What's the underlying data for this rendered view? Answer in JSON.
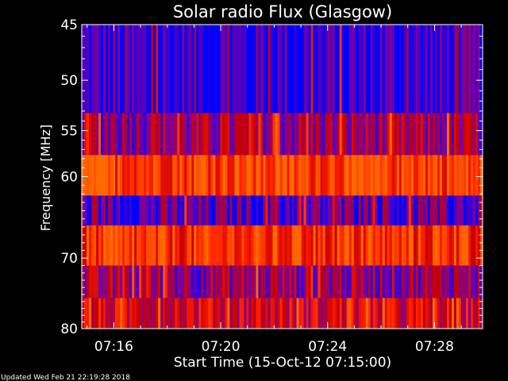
{
  "chart_data": {
    "type": "heatmap",
    "title": "Solar radio Flux (Glasgow)",
    "xlabel": "Start Time (15-Oct-12 07:15:00)",
    "ylabel": "Frequency [MHz]",
    "x_tick_labels": [
      "07:16",
      "07:20",
      "07:24",
      "07:28"
    ],
    "x_ticks_minutes": [
      1,
      5,
      9,
      13
    ],
    "xlim_minutes": [
      -0.2,
      14.8
    ],
    "y_tick_labels": [
      "45",
      "50",
      "55",
      "60",
      "70",
      "80"
    ],
    "y_ticks": [
      45,
      50,
      55,
      60,
      70,
      80
    ],
    "y_scale": "log",
    "ylim": [
      45,
      80
    ],
    "colormap": [
      "#0000ff",
      "#7a00a0",
      "#c80000",
      "#ff2000",
      "#ff6a00"
    ],
    "bands": [
      {
        "f_low": 45.0,
        "f_high": 53.2,
        "intensity": 0.08
      },
      {
        "f_low": 53.2,
        "f_high": 57.6,
        "intensity": 0.35
      },
      {
        "f_low": 57.6,
        "f_high": 62.2,
        "intensity": 0.85
      },
      {
        "f_low": 62.2,
        "f_high": 65.8,
        "intensity": 0.18
      },
      {
        "f_low": 65.8,
        "f_high": 71.0,
        "intensity": 0.75
      },
      {
        "f_low": 71.0,
        "f_high": 75.5,
        "intensity": 0.35
      },
      {
        "f_low": 75.5,
        "f_high": 80.0,
        "intensity": 0.55
      }
    ]
  },
  "footer": {
    "updated": "Updated Wed Feb 21 22:19:28 2018"
  }
}
